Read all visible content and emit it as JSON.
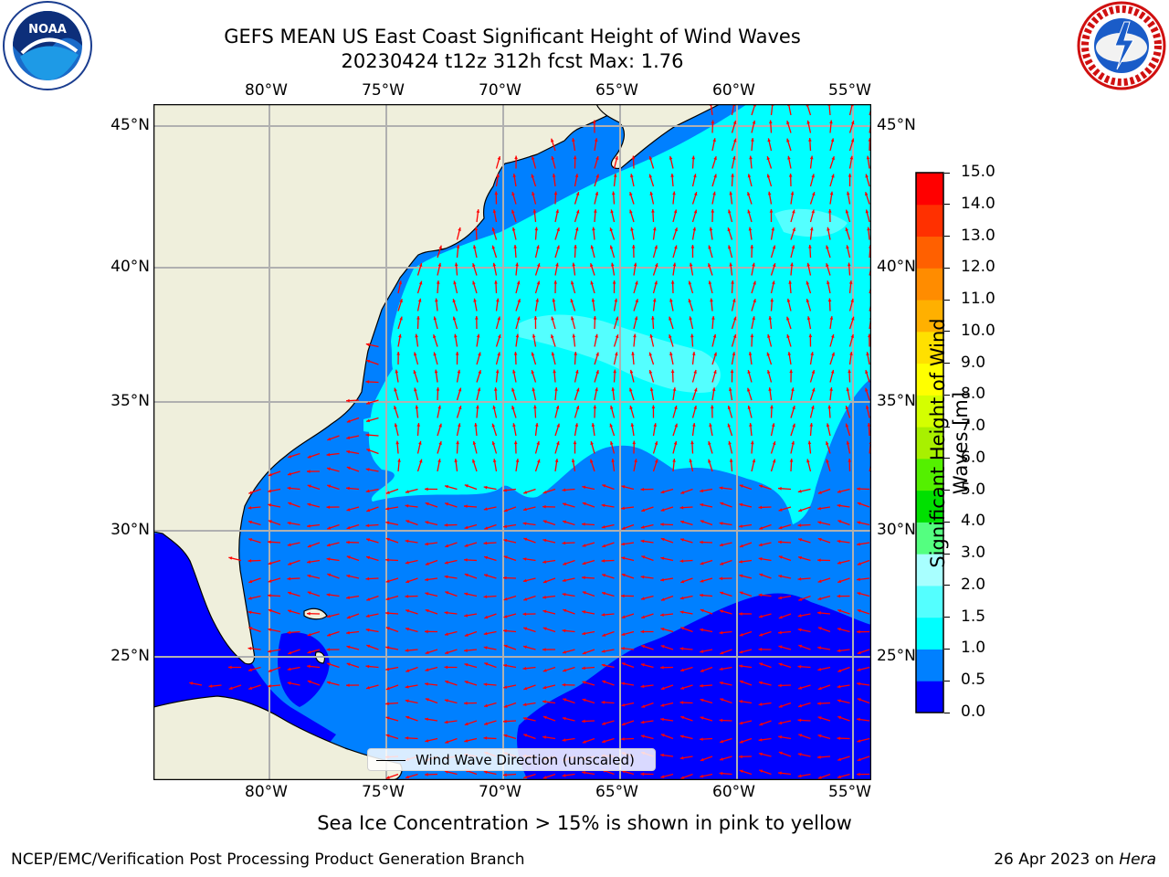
{
  "header": {
    "title_line1": "GEFS MEAN US East Coast Significant Height of Wind Waves",
    "title_line2": "20230424 t12z 312h fcst   Max: 1.76"
  },
  "logos": {
    "left": {
      "icon": "noaa-logo-icon",
      "text": "NOAA",
      "ring_text": "NATIONAL OCEANIC AND ATMOSPHERIC ADMINISTRATION · U.S. DEPARTMENT OF COMMERCE"
    },
    "right": {
      "icon": "nws-logo-icon",
      "ring_text": "NATIONAL WEATHER SERVICE"
    }
  },
  "map": {
    "lon_labels": [
      "80°W",
      "75°W",
      "70°W",
      "65°W",
      "60°W",
      "55°W"
    ],
    "lat_labels": [
      "45°N",
      "40°N",
      "35°N",
      "30°N",
      "25°N"
    ],
    "colors": {
      "land": "#efefdc",
      "band_0_0_5": "#0000ff",
      "band_0_5_1_0": "#0080ff",
      "band_1_0_1_5": "#00ffff",
      "band_1_5_2_0": "#54ffff",
      "arrow": "#ff0000",
      "grid": "#b0b0b0"
    },
    "legend_label": "Wind Wave Direction (unscaled)"
  },
  "colorbar": {
    "label": "Significant Height of Wind Waves [m]",
    "ticks": [
      "0.0",
      "0.5",
      "1.0",
      "1.5",
      "2.0",
      "3.0",
      "4.0",
      "5.0",
      "6.0",
      "7.0",
      "8.0",
      "9.0",
      "10.0",
      "11.0",
      "12.0",
      "13.0",
      "14.0",
      "15.0"
    ],
    "colors": [
      "#0000ff",
      "#0080ff",
      "#00ffff",
      "#54ffff",
      "#a8ffff",
      "#54ff80",
      "#00e000",
      "#54f000",
      "#a8f000",
      "#d4ff00",
      "#ffff00",
      "#ffe000",
      "#ffb000",
      "#ff8c00",
      "#ff6000",
      "#ff3000",
      "#ff0000"
    ]
  },
  "subtitle": "Sea Ice Concentration > 15% is shown in pink to yellow",
  "footer": {
    "left": "NCEP/EMC/Verification Post Processing Product Generation Branch",
    "right_date": "26 Apr 2023 on ",
    "right_host": "Hera"
  }
}
